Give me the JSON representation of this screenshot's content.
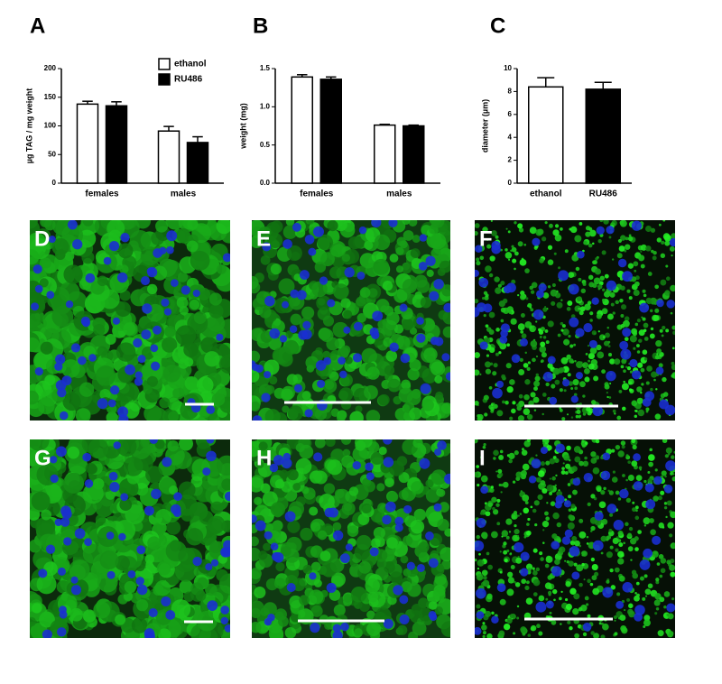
{
  "chart_data": [
    {
      "type": "bar",
      "panel_label": "A",
      "ylabel": "µg TAG / mg weight",
      "categories": [
        "females",
        "males"
      ],
      "series": [
        {
          "name": "ethanol",
          "color": "#ffffff",
          "values": [
            138,
            91
          ],
          "errors": [
            5,
            8
          ]
        },
        {
          "name": "RU486",
          "color": "#000000",
          "values": [
            135,
            71
          ],
          "errors": [
            7,
            10
          ]
        }
      ],
      "ylim": [
        0,
        200
      ],
      "yticks": [
        0,
        50,
        100,
        150,
        200
      ],
      "legend": "top-right"
    },
    {
      "type": "bar",
      "panel_label": "B",
      "ylabel": "weight (mg)",
      "categories": [
        "females",
        "males"
      ],
      "series": [
        {
          "color": "#ffffff",
          "values": [
            1.39,
            0.76
          ],
          "errors": [
            0.03,
            0.01
          ]
        },
        {
          "color": "#000000",
          "values": [
            1.36,
            0.75
          ],
          "errors": [
            0.03,
            0.01
          ]
        }
      ],
      "ylim": [
        0,
        1.5
      ],
      "yticks": [
        {
          "value": 0,
          "label": "0.0"
        },
        0.5,
        {
          "value": 1,
          "label": "1.0"
        },
        1.5
      ]
    },
    {
      "type": "bar",
      "panel_label": "C",
      "ylabel": "diameter (µm)",
      "categories": [
        "ethanol",
        "RU486"
      ],
      "series": [
        {
          "colors": [
            "#ffffff",
            "#000000"
          ],
          "values": [
            8.4,
            8.2
          ],
          "errors": [
            0.8,
            0.6
          ]
        }
      ],
      "ylim": [
        0,
        10
      ],
      "yticks": [
        0,
        2,
        4,
        6,
        8,
        10
      ]
    }
  ],
  "micrographs": [
    {
      "label": "D"
    },
    {
      "label": "E"
    },
    {
      "label": "F"
    },
    {
      "label": "G"
    },
    {
      "label": "H"
    },
    {
      "label": "I"
    }
  ]
}
